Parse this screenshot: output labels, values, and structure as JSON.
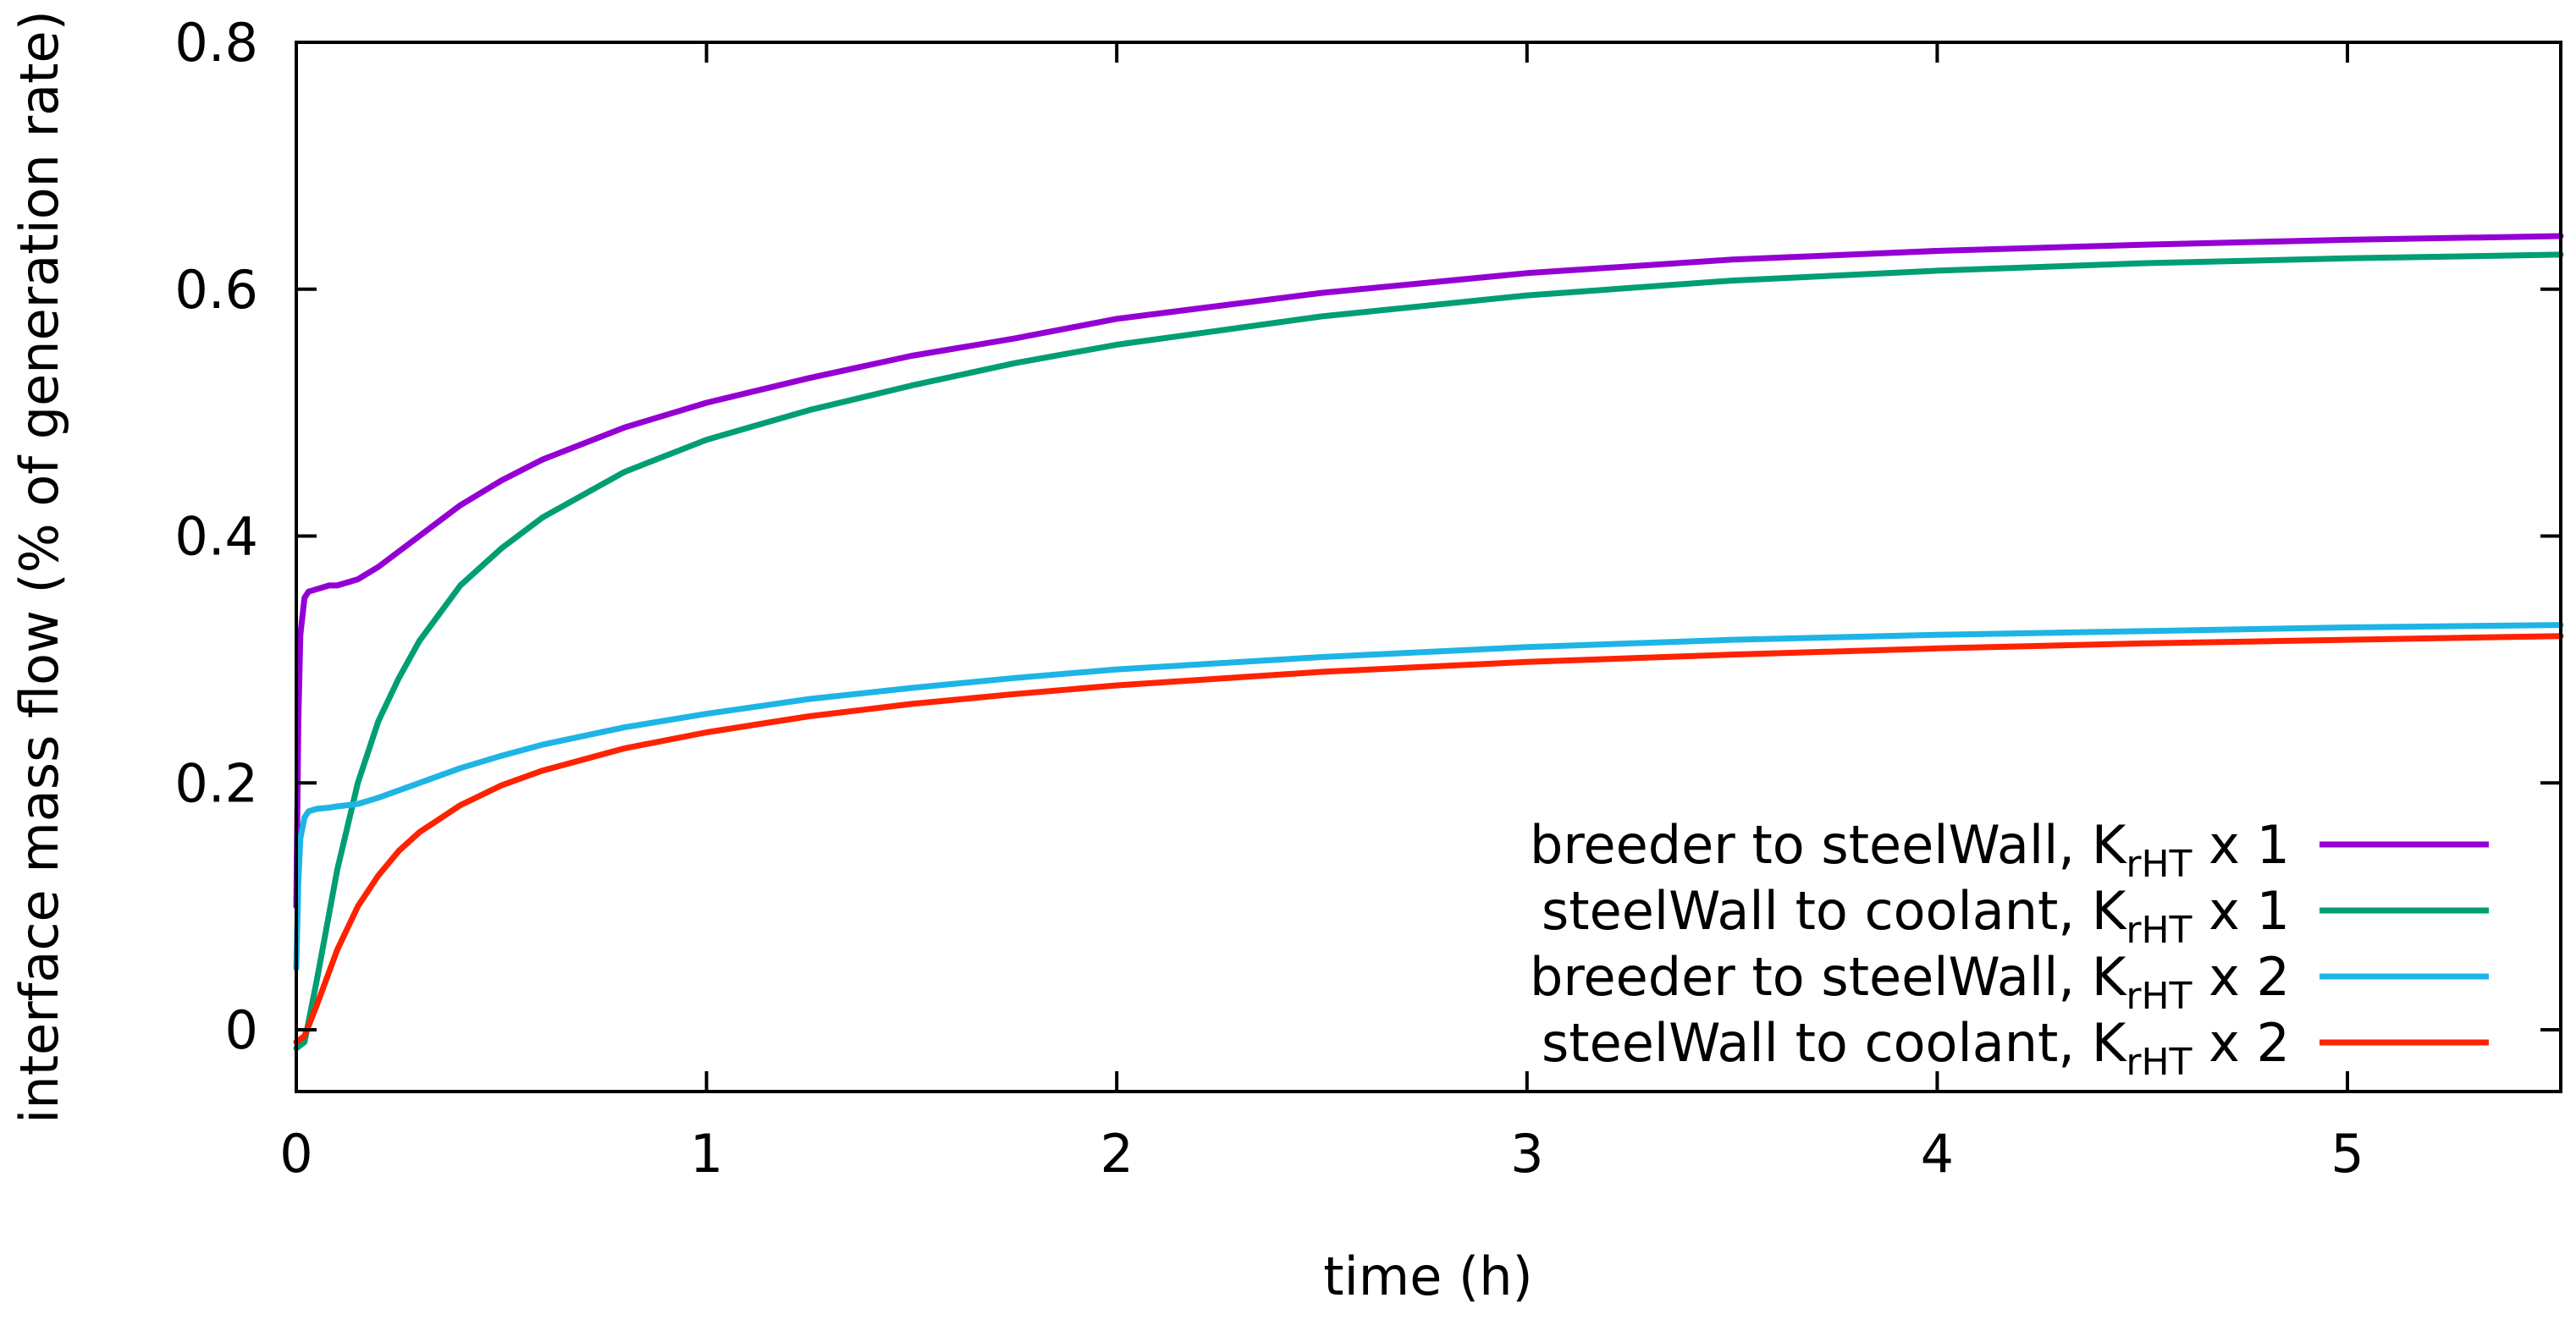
{
  "chart_data": {
    "type": "line",
    "title": "",
    "xlabel": "time (h)",
    "ylabel": "interface mass flow (% of generation rate)",
    "xlim": [
      0,
      5.52
    ],
    "ylim": [
      -0.05,
      0.8
    ],
    "x_ticks": [
      {
        "value": 0,
        "label": "0"
      },
      {
        "value": 1,
        "label": "1"
      },
      {
        "value": 2,
        "label": "2"
      },
      {
        "value": 3,
        "label": "3"
      },
      {
        "value": 4,
        "label": "4"
      },
      {
        "value": 5,
        "label": "5"
      }
    ],
    "y_ticks": [
      {
        "value": 0,
        "label": "0"
      },
      {
        "value": 0.2,
        "label": "0.2"
      },
      {
        "value": 0.4,
        "label": "0.4"
      },
      {
        "value": 0.6,
        "label": "0.6"
      },
      {
        "value": 0.8,
        "label": "0.8"
      }
    ],
    "grid": false,
    "legend_position": "bottom-right",
    "series": [
      {
        "name": "breeder to steelWall, KrHT x 1",
        "legend_main": "breeder to steelWall, K",
        "legend_sub": "rHT",
        "legend_tail": " x 1",
        "color": "#9400d3",
        "x": [
          0,
          0.005,
          0.01,
          0.02,
          0.03,
          0.05,
          0.08,
          0.1,
          0.15,
          0.2,
          0.3,
          0.4,
          0.5,
          0.6,
          0.8,
          1.0,
          1.25,
          1.5,
          1.75,
          2.0,
          2.5,
          3.0,
          3.5,
          4.0,
          4.5,
          5.0,
          5.52
        ],
        "y": [
          0.1,
          0.25,
          0.32,
          0.35,
          0.355,
          0.357,
          0.36,
          0.36,
          0.365,
          0.375,
          0.4,
          0.425,
          0.445,
          0.462,
          0.488,
          0.508,
          0.528,
          0.546,
          0.56,
          0.576,
          0.597,
          0.613,
          0.624,
          0.631,
          0.636,
          0.64,
          0.643
        ]
      },
      {
        "name": "steelWall to coolant, KrHT x 1",
        "legend_main": "steelWall to coolant, K",
        "legend_sub": "rHT",
        "legend_tail": " x 1",
        "color": "#009e73",
        "x": [
          0,
          0.02,
          0.05,
          0.1,
          0.15,
          0.2,
          0.25,
          0.3,
          0.4,
          0.5,
          0.6,
          0.8,
          1.0,
          1.25,
          1.5,
          1.75,
          2.0,
          2.5,
          3.0,
          3.5,
          4.0,
          4.5,
          5.0,
          5.52
        ],
        "y": [
          -0.015,
          -0.01,
          0.04,
          0.13,
          0.2,
          0.25,
          0.285,
          0.315,
          0.36,
          0.39,
          0.415,
          0.452,
          0.478,
          0.502,
          0.522,
          0.54,
          0.555,
          0.578,
          0.595,
          0.607,
          0.615,
          0.621,
          0.625,
          0.628
        ]
      },
      {
        "name": "breeder to steelWall, KrHT x 2",
        "legend_main": "breeder to steelWall, K",
        "legend_sub": "rHT",
        "legend_tail": " x 2",
        "color": "#1eb4e6",
        "x": [
          0,
          0.005,
          0.01,
          0.02,
          0.03,
          0.05,
          0.08,
          0.1,
          0.15,
          0.2,
          0.3,
          0.4,
          0.5,
          0.6,
          0.8,
          1.0,
          1.25,
          1.5,
          1.75,
          2.0,
          2.5,
          3.0,
          3.5,
          4.0,
          4.5,
          5.0,
          5.52
        ],
        "y": [
          0.05,
          0.12,
          0.155,
          0.172,
          0.177,
          0.179,
          0.18,
          0.181,
          0.183,
          0.188,
          0.2,
          0.212,
          0.222,
          0.231,
          0.245,
          0.256,
          0.268,
          0.277,
          0.285,
          0.292,
          0.302,
          0.31,
          0.316,
          0.32,
          0.323,
          0.326,
          0.328
        ]
      },
      {
        "name": "steelWall to coolant, KrHT x 2",
        "legend_main": "steelWall to coolant, K",
        "legend_sub": "rHT",
        "legend_tail": " x 2",
        "color": "#ff2200",
        "x": [
          0,
          0.02,
          0.05,
          0.1,
          0.15,
          0.2,
          0.25,
          0.3,
          0.4,
          0.5,
          0.6,
          0.8,
          1.0,
          1.25,
          1.5,
          1.75,
          2.0,
          2.5,
          3.0,
          3.5,
          4.0,
          4.5,
          5.0,
          5.52
        ],
        "y": [
          -0.01,
          -0.005,
          0.02,
          0.065,
          0.1,
          0.125,
          0.145,
          0.16,
          0.182,
          0.198,
          0.21,
          0.228,
          0.241,
          0.254,
          0.264,
          0.272,
          0.279,
          0.29,
          0.298,
          0.304,
          0.309,
          0.313,
          0.316,
          0.319
        ]
      }
    ]
  }
}
